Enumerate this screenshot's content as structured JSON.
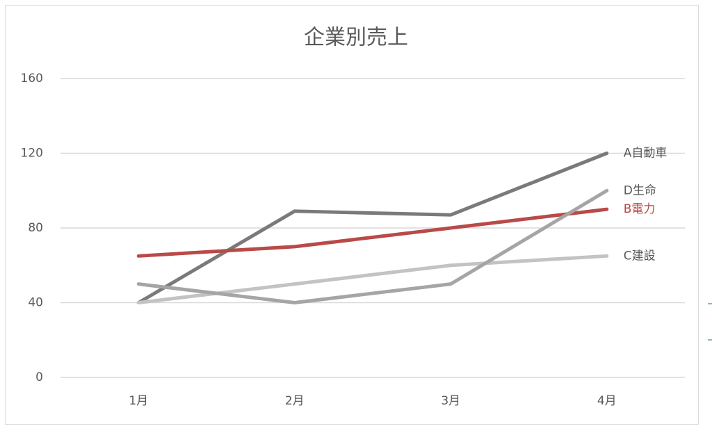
{
  "chart_data": {
    "type": "line",
    "title": "企業別売上",
    "categories": [
      "1月",
      "2月",
      "3月",
      "4月"
    ],
    "series": [
      {
        "name": "A自動車",
        "color": "#7a7a7a",
        "values": [
          40,
          89,
          87,
          120
        ]
      },
      {
        "name": "B電力",
        "color": "#b94a48",
        "values": [
          65,
          70,
          80,
          90
        ]
      },
      {
        "name": "C建設",
        "color": "#c3c3c3",
        "values": [
          40,
          50,
          60,
          65
        ]
      },
      {
        "name": "D生命",
        "color": "#a5a5a5",
        "values": [
          50,
          40,
          50,
          100
        ]
      }
    ],
    "ylim": [
      0,
      160
    ],
    "yticks": [
      0,
      40,
      80,
      120,
      160
    ],
    "grid": true
  }
}
